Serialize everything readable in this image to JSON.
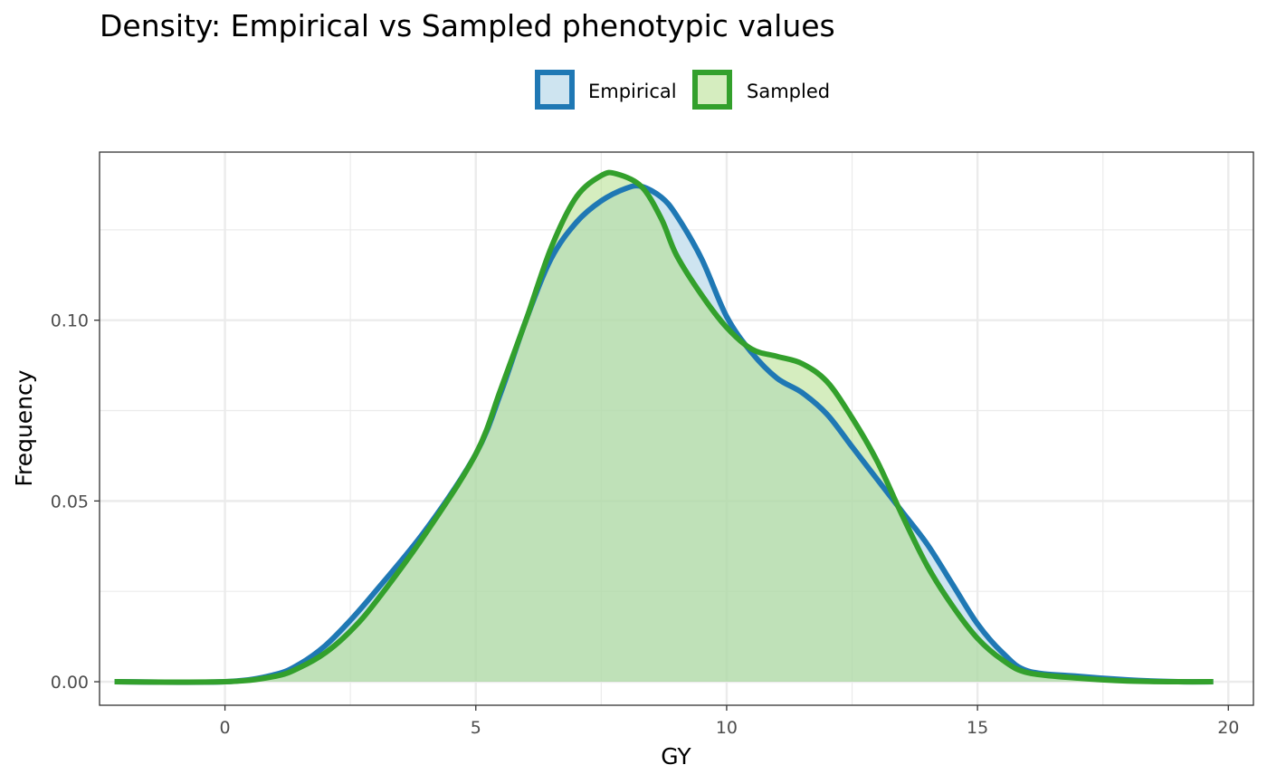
{
  "chart_data": {
    "type": "area",
    "title": "Density: Empirical vs Sampled phenotypic values",
    "xlabel": "GY",
    "ylabel": "Frequency",
    "xlim": [
      -2.5,
      20.5
    ],
    "ylim": [
      -0.0065,
      0.1465
    ],
    "x_ticks": [
      0,
      5,
      10,
      15,
      20
    ],
    "x_tick_labels": [
      "0",
      "5",
      "10",
      "15",
      "20"
    ],
    "y_ticks": [
      0.0,
      0.05,
      0.1
    ],
    "y_tick_labels": [
      "0.00",
      "0.05",
      "0.10"
    ],
    "grid": true,
    "legend_position": "top",
    "series": [
      {
        "name": "Empirical",
        "color": "#1f78b4",
        "fill": "#a6cee3",
        "x": [
          -2.2,
          0,
          1,
          1.5,
          2,
          2.5,
          3,
          4,
          5,
          5.5,
          6,
          6.5,
          7,
          7.5,
          8,
          8.3,
          8.7,
          9,
          9.5,
          10,
          10.5,
          11,
          11.5,
          12,
          12.5,
          13,
          13.5,
          14,
          14.5,
          15,
          15.5,
          16,
          17,
          18,
          19,
          19.7
        ],
        "y": [
          0.0,
          0.0,
          0.002,
          0.005,
          0.01,
          0.017,
          0.025,
          0.042,
          0.063,
          0.08,
          0.1,
          0.117,
          0.127,
          0.133,
          0.1365,
          0.137,
          0.134,
          0.129,
          0.117,
          0.101,
          0.091,
          0.084,
          0.08,
          0.074,
          0.065,
          0.056,
          0.047,
          0.038,
          0.027,
          0.016,
          0.008,
          0.003,
          0.0015,
          0.0005,
          0.0,
          0.0
        ]
      },
      {
        "name": "Sampled",
        "color": "#33a02c",
        "fill": "#b2df8a",
        "x": [
          -2.2,
          0,
          1,
          1.5,
          2,
          2.5,
          3,
          4,
          5,
          5.5,
          6,
          6.5,
          7,
          7.5,
          7.8,
          8.3,
          8.7,
          9,
          9.5,
          10,
          10.5,
          11,
          11.5,
          12,
          12.5,
          13,
          13.5,
          14,
          14.5,
          15,
          15.5,
          16,
          17,
          18,
          19,
          19.7
        ],
        "y": [
          0.0,
          0.0,
          0.0015,
          0.004,
          0.008,
          0.014,
          0.022,
          0.041,
          0.063,
          0.081,
          0.1,
          0.12,
          0.134,
          0.14,
          0.1405,
          0.137,
          0.128,
          0.118,
          0.107,
          0.098,
          0.092,
          0.09,
          0.088,
          0.083,
          0.073,
          0.061,
          0.046,
          0.032,
          0.021,
          0.012,
          0.006,
          0.0025,
          0.001,
          0.0002,
          0.0,
          0.0
        ]
      }
    ]
  }
}
